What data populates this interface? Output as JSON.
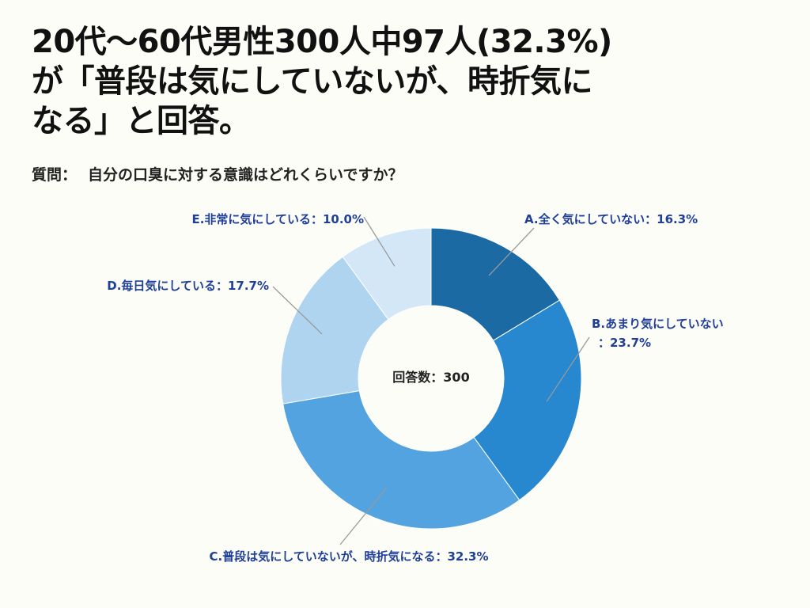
{
  "headline": {
    "line1": "20代〜60代男性300人中97人(32.3%)",
    "line2": "が「普段は気にしていないが、時折気に",
    "line3": "なる」と回答。"
  },
  "question": {
    "prefix": "質問：",
    "text": "自分の口臭に対する意識はどれくらいですか？"
  },
  "chart_data": {
    "type": "pie",
    "donut": true,
    "center_text": "回答数：300",
    "categories": [
      "A.全く気にしていない",
      "B.あまり気にしていない",
      "C.普段は気にしていないが、時折気になる",
      "D.毎日気にしている",
      "E.非常に気にしている"
    ],
    "values": [
      16.3,
      23.7,
      32.3,
      17.7,
      10.0
    ],
    "unit": "%",
    "colors": [
      "#1c6aa3",
      "#2787cf",
      "#52a3e0",
      "#aed4ef",
      "#d4e7f7"
    ],
    "labels": [
      [
        "A.全く気にしていない：16.3%"
      ],
      [
        "B.あまり気にしていない",
        "：23.7%"
      ],
      [
        "C.普段は気にしていないが、時折気になる：32.3%"
      ],
      [
        "D.毎日気にしている：17.7%"
      ],
      [
        "E.非常に気にしている：10.0%"
      ]
    ]
  }
}
